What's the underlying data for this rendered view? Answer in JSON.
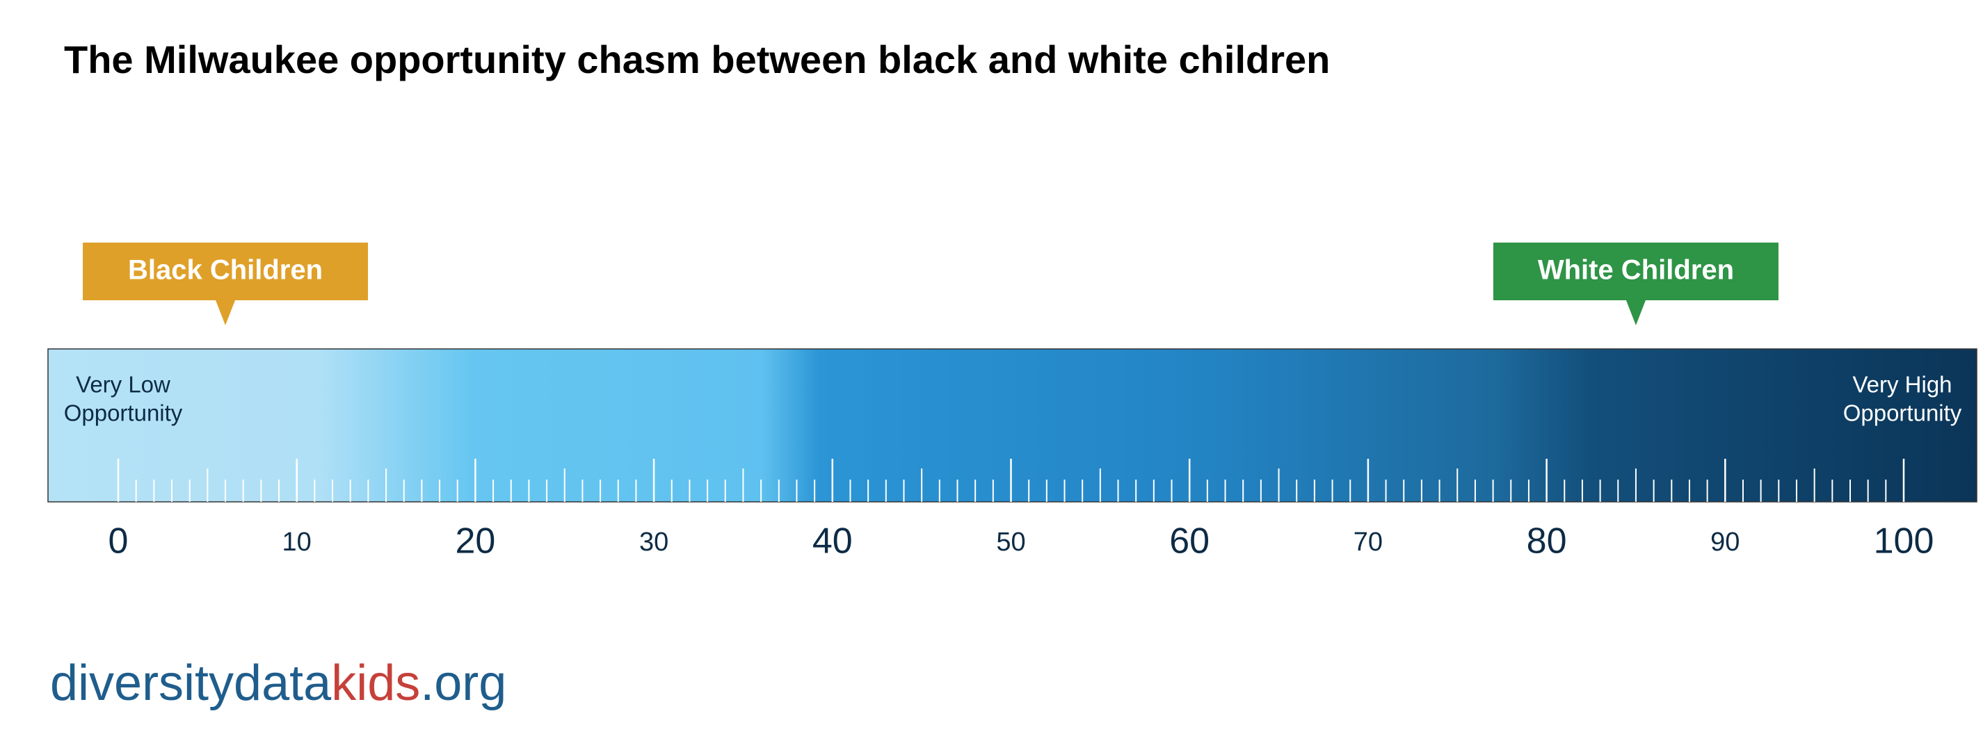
{
  "chart_data": {
    "type": "scale",
    "title": "The Milwaukee opportunity chasm between black and white children",
    "low_label": [
      "Very Low",
      "Opportunity"
    ],
    "high_label": [
      "Very High",
      "Opportunity"
    ],
    "xlim": [
      0,
      100
    ],
    "xticks": [
      0,
      10,
      20,
      30,
      40,
      50,
      60,
      70,
      80,
      90,
      100
    ],
    "markers": [
      {
        "name": "Black Children",
        "value": 6,
        "color": "#dfa02a"
      },
      {
        "name": "White Children",
        "value": 85,
        "color": "#2e9446"
      }
    ]
  },
  "logo": {
    "parts": [
      "diversitydata",
      "kids",
      ".org"
    ]
  }
}
